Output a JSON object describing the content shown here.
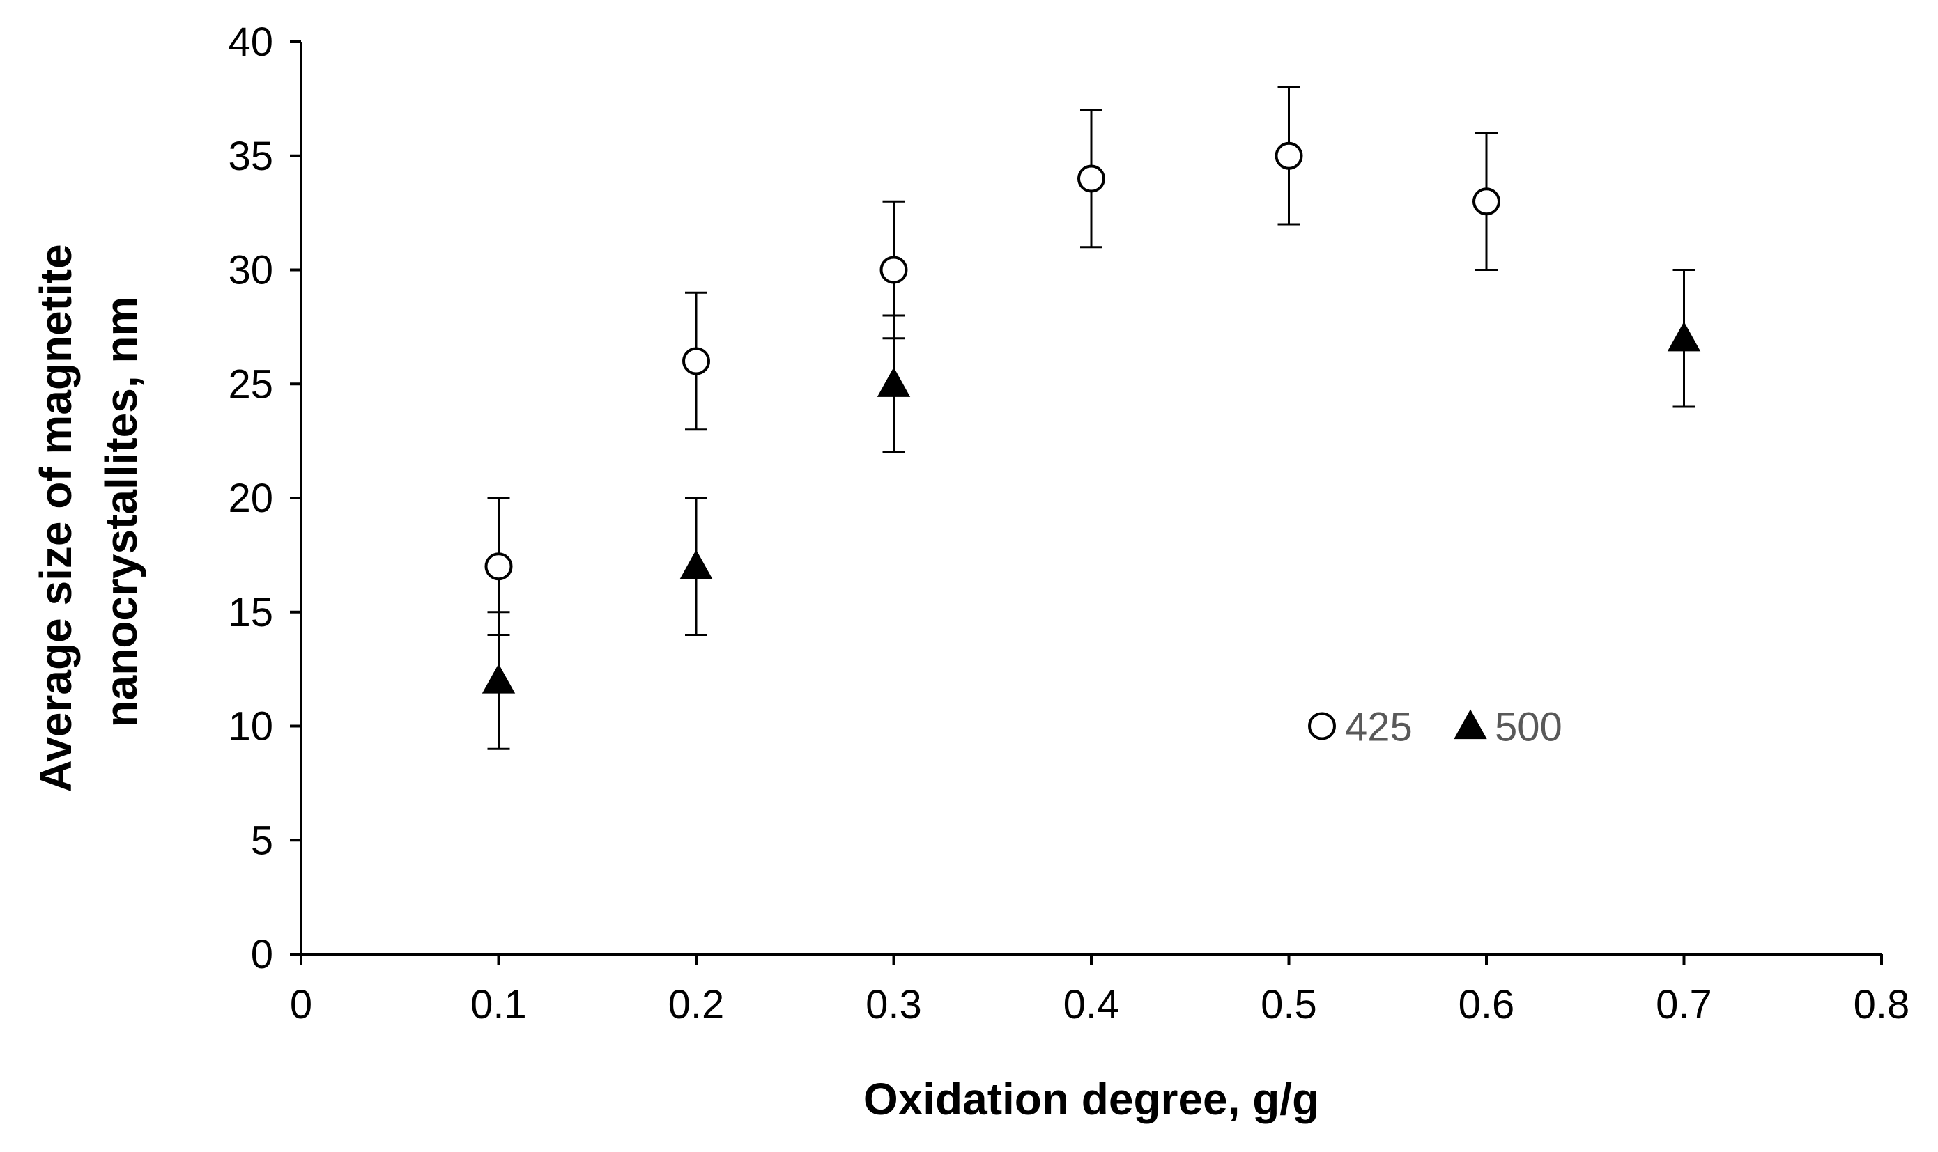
{
  "chart_data": {
    "type": "scatter",
    "title": "",
    "xlabel": "Oxidation degree, g/g",
    "ylabel_lines": [
      "Average size of magnetite",
      "nanocrystallites, nm"
    ],
    "xlim": [
      0,
      0.8
    ],
    "ylim": [
      0,
      40
    ],
    "x_ticks": [
      "0",
      "0.1",
      "0.2",
      "0.3",
      "0.4",
      "0.5",
      "0.6",
      "0.7",
      "0.8"
    ],
    "y_ticks": [
      "0",
      "5",
      "10",
      "15",
      "20",
      "25",
      "30",
      "35",
      "40"
    ],
    "grid": false,
    "legend": {
      "placement": "inside-right",
      "entries": [
        "425",
        "500"
      ]
    },
    "series": [
      {
        "name": "425",
        "marker": "open-circle",
        "color": "#000000",
        "x": [
          0.1,
          0.2,
          0.3,
          0.4,
          0.5,
          0.6
        ],
        "y": [
          17,
          26,
          30,
          34,
          35,
          33
        ],
        "error": [
          3,
          3,
          3,
          3,
          3,
          3
        ]
      },
      {
        "name": "500",
        "marker": "filled-triangle",
        "color": "#000000",
        "x": [
          0.1,
          0.2,
          0.3,
          0.7
        ],
        "y": [
          12,
          17,
          25,
          27
        ],
        "error": [
          3,
          3,
          3,
          3
        ]
      }
    ]
  }
}
